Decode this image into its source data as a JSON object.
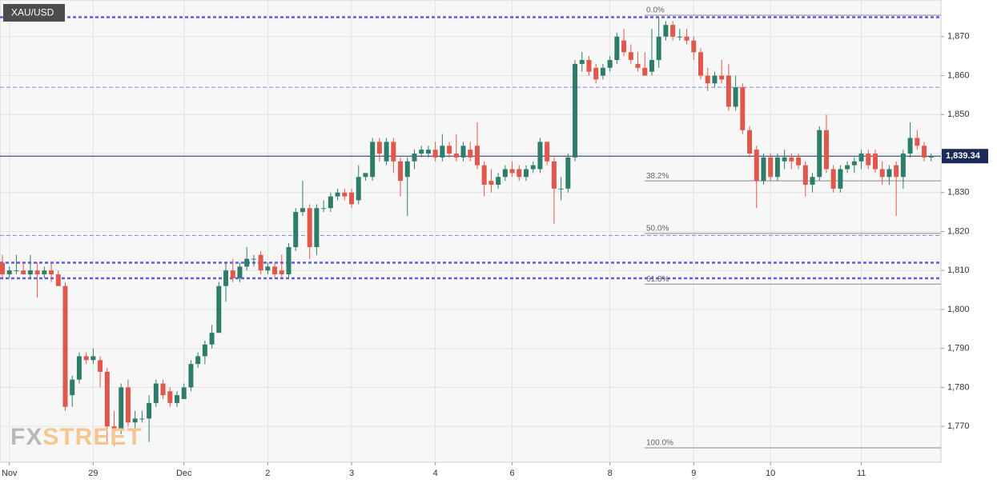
{
  "chart_data": {
    "type": "candlestick",
    "title": "XAU/USD",
    "watermark": [
      "FX",
      "STREET"
    ],
    "categories": [
      null,
      "Nov",
      null,
      null,
      null,
      null,
      null,
      null,
      null,
      null,
      null,
      null,
      null,
      "29",
      null,
      null,
      null,
      null,
      null,
      null,
      null,
      null,
      null,
      null,
      null,
      null,
      "Dec",
      null,
      null,
      null,
      null,
      null,
      null,
      null,
      null,
      null,
      null,
      null,
      "2",
      null,
      null,
      null,
      null,
      null,
      null,
      null,
      null,
      null,
      null,
      null,
      "3",
      null,
      null,
      null,
      null,
      null,
      null,
      null,
      null,
      null,
      null,
      null,
      "4",
      null,
      null,
      null,
      null,
      null,
      null,
      null,
      null,
      null,
      null,
      "6",
      null,
      null,
      null,
      null,
      null,
      null,
      null,
      null,
      null,
      null,
      null,
      null,
      null,
      "8",
      null,
      null,
      null,
      null,
      null,
      null,
      null,
      null,
      null,
      null,
      null,
      "9",
      null,
      null,
      null,
      null,
      null,
      null,
      null,
      null,
      null,
      null,
      "10",
      null,
      null,
      null,
      null,
      null,
      null,
      null,
      null,
      null,
      null,
      null,
      null,
      "11",
      null,
      null,
      null,
      null,
      null,
      null,
      null,
      null,
      null,
      null
    ],
    "open": [
      1812,
      1809,
      1810,
      1810,
      1809,
      1810,
      1809,
      1810,
      1809,
      1806,
      1778,
      1782,
      1788,
      1787,
      1787,
      1784,
      1770,
      1769,
      1780,
      1771,
      1772,
      1772,
      1776,
      1781,
      1779,
      1776,
      1777,
      1780,
      1786,
      1788,
      1791,
      1794,
      1806,
      1810,
      1808,
      1811,
      1813,
      1814,
      1810,
      1811,
      1810,
      1809,
      1816,
      1825,
      1826,
      1816,
      1826,
      1826,
      1829,
      1830,
      1830,
      1828,
      1834,
      1834,
      1843,
      1838,
      1843,
      1838,
      1834,
      1838,
      1840,
      1840,
      1841,
      1839,
      1842,
      1840,
      1839,
      1841,
      1842,
      1837,
      1833,
      1832,
      1834,
      1836,
      1836,
      1834,
      1836,
      1836,
      1843,
      1838,
      1831,
      1831,
      1839,
      1863,
      1864,
      1862,
      1860,
      1862,
      1864,
      1869,
      1866,
      1863,
      1862,
      1861,
      1864,
      1870,
      1873,
      1870,
      1870,
      1869,
      1866,
      1860,
      1858,
      1860,
      1860,
      1852,
      1857,
      1846,
      1841,
      1833,
      1839,
      1834,
      1838,
      1839,
      1839,
      1837,
      1832,
      1834,
      1846,
      1836,
      1831,
      1836,
      1837,
      1838,
      1840,
      1840,
      1836,
      1834,
      1837,
      1834,
      1840,
      1844,
      1842,
      1839
    ],
    "high": [
      1814,
      1811,
      1814,
      1812,
      1814,
      1812,
      1811,
      1812,
      1810,
      1807,
      1783,
      1789,
      1789,
      1790,
      1788,
      1785,
      1774,
      1781,
      1782,
      1774,
      1774,
      1778,
      1782,
      1782,
      1780,
      1779,
      1781,
      1787,
      1789,
      1792,
      1796,
      1807,
      1812,
      1813,
      1812,
      1816,
      1814,
      1815,
      1812,
      1812,
      1814,
      1817,
      1826,
      1833,
      1827,
      1827,
      1828,
      1830,
      1831,
      1831,
      1831,
      1837,
      1835,
      1844,
      1844,
      1844,
      1844,
      1839,
      1839,
      1841,
      1842,
      1842,
      1843,
      1845,
      1843,
      1845,
      1843,
      1843,
      1848,
      1838,
      1836,
      1835,
      1837,
      1838,
      1837,
      1837,
      1838,
      1844,
      1843,
      1839,
      1834,
      1840,
      1864,
      1866,
      1865,
      1863,
      1863,
      1865,
      1871,
      1872,
      1868,
      1866,
      1866,
      1872,
      1875,
      1874,
      1874,
      1872,
      1872,
      1870,
      1867,
      1862,
      1861,
      1864,
      1863,
      1860,
      1858,
      1847,
      1842,
      1840,
      1840,
      1840,
      1841,
      1840,
      1840,
      1838,
      1835,
      1847,
      1850,
      1837,
      1837,
      1838,
      1839,
      1841,
      1841,
      1841,
      1838,
      1837,
      1838,
      1841,
      1848,
      1846,
      1843,
      1840
    ],
    "low": [
      1808,
      1808,
      1809,
      1809,
      1808,
      1803,
      1808,
      1807,
      1806,
      1774,
      1775,
      1781,
      1786,
      1786,
      1780,
      1766,
      1765,
      1768,
      1770,
      1766,
      1771,
      1766,
      1775,
      1777,
      1775,
      1775,
      1777,
      1779,
      1785,
      1786,
      1790,
      1794,
      1802,
      1807,
      1807,
      1810,
      1811,
      1809,
      1809,
      1808,
      1808,
      1808,
      1815,
      1824,
      1813,
      1814,
      1825,
      1825,
      1828,
      1828,
      1826,
      1827,
      1833,
      1833,
      1838,
      1837,
      1835,
      1829,
      1824,
      1836,
      1839,
      1839,
      1838,
      1838,
      1839,
      1838,
      1838,
      1838,
      1836,
      1829,
      1830,
      1831,
      1833,
      1834,
      1833,
      1833,
      1835,
      1835,
      1837,
      1822,
      1828,
      1830,
      1838,
      1861,
      1860,
      1858,
      1859,
      1861,
      1863,
      1865,
      1863,
      1861,
      1860,
      1860,
      1862,
      1869,
      1869,
      1869,
      1868,
      1864,
      1859,
      1856,
      1857,
      1858,
      1851,
      1851,
      1845,
      1839,
      1826,
      1832,
      1833,
      1833,
      1836,
      1836,
      1836,
      1829,
      1830,
      1833,
      1835,
      1830,
      1830,
      1835,
      1835,
      1836,
      1836,
      1835,
      1832,
      1832,
      1824,
      1831,
      1839,
      1841,
      1838,
      1838
    ],
    "close": [
      1809,
      1810,
      1810,
      1809,
      1810,
      1809,
      1810,
      1809,
      1806,
      1775,
      1782,
      1788,
      1787,
      1788,
      1784,
      1770,
      1769,
      1780,
      1771,
      1772,
      1772,
      1776,
      1781,
      1778,
      1776,
      1778,
      1780,
      1786,
      1788,
      1791,
      1794,
      1806,
      1810,
      1808,
      1811,
      1813,
      1813,
      1810,
      1811,
      1809,
      1809,
      1816,
      1825,
      1826,
      1816,
      1826,
      1826,
      1829,
      1830,
      1829,
      1827,
      1834,
      1835,
      1843,
      1840,
      1843,
      1838,
      1833,
      1838,
      1840,
      1841,
      1841,
      1839,
      1842,
      1840,
      1839,
      1842,
      1839,
      1837,
      1832,
      1832,
      1834,
      1836,
      1835,
      1834,
      1836,
      1837,
      1843,
      1838,
      1831,
      1831,
      1839,
      1863,
      1864,
      1861,
      1859,
      1862,
      1864,
      1870,
      1866,
      1864,
      1862,
      1860,
      1864,
      1870,
      1873,
      1870,
      1870,
      1869,
      1866,
      1860,
      1858,
      1860,
      1859,
      1852,
      1857,
      1846,
      1840,
      1833,
      1839,
      1834,
      1839,
      1839,
      1838,
      1837,
      1832,
      1834,
      1846,
      1836,
      1831,
      1836,
      1837,
      1838,
      1840,
      1837,
      1836,
      1834,
      1836,
      1834,
      1840,
      1844,
      1842,
      1839,
      1839.34
    ],
    "up_color": "#2e7d6b",
    "down_color": "#e0574c",
    "ylim": [
      1760.8,
      1879.4
    ],
    "yticks": [
      {
        "value": 1770,
        "label": "1,770"
      },
      {
        "value": 1780,
        "label": "1,780"
      },
      {
        "value": 1790,
        "label": "1,790"
      },
      {
        "value": 1800,
        "label": "1,800"
      },
      {
        "value": 1810,
        "label": "1,810"
      },
      {
        "value": 1820,
        "label": "1,820"
      },
      {
        "value": 1830,
        "label": "1,830"
      },
      {
        "value": 1840,
        "label": "1,840"
      },
      {
        "value": 1850,
        "label": "1,850"
      },
      {
        "value": 1860,
        "label": "1,860"
      },
      {
        "value": 1870,
        "label": "1,870"
      }
    ],
    "grid": true,
    "levels": [
      {
        "value": 1875,
        "style": "thick"
      },
      {
        "value": 1857,
        "style": "thin"
      },
      {
        "value": 1819,
        "style": "thin"
      },
      {
        "value": 1812,
        "style": "thick"
      },
      {
        "value": 1808,
        "style": "thick"
      }
    ],
    "level_color": "#5b5bf0",
    "fib_levels": [
      {
        "label": "0.0%",
        "value": 1875.5
      },
      {
        "label": "38.2%",
        "value": 1833
      },
      {
        "label": "50.0%",
        "value": 1819.5
      },
      {
        "label": "61.8%",
        "value": 1806.5
      },
      {
        "label": "100.0%",
        "value": 1764.5
      }
    ],
    "last_price": {
      "value": 1839.34,
      "label": "1,839.34",
      "color": "#1c2a5a"
    }
  }
}
